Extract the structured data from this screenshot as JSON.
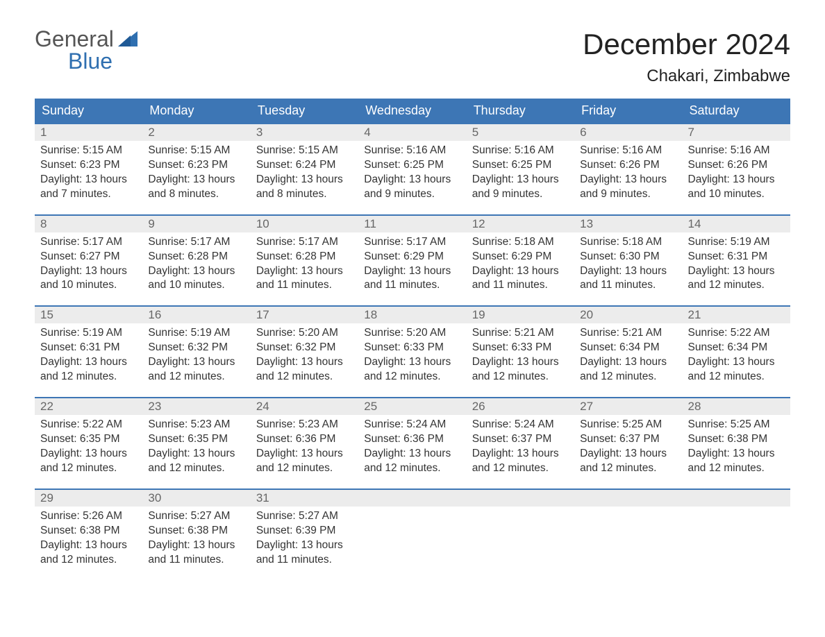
{
  "logo": {
    "text_top": "General",
    "text_bottom": "Blue",
    "top_color": "#555555",
    "bottom_color": "#2f6fb0",
    "flag_color": "#2f6fb0",
    "fontsize": 32
  },
  "title": {
    "month": "December 2024",
    "month_fontsize": 42,
    "location": "Chakari, Zimbabwe",
    "location_fontsize": 24,
    "color": "#222222"
  },
  "calendar": {
    "header_bg": "#3d76b5",
    "header_text_color": "#ffffff",
    "row_accent_color": "#3d76b5",
    "daynum_bg": "#ececec",
    "daynum_color": "#666666",
    "body_text_color": "#333333",
    "background": "#ffffff",
    "cell_fontsize": 15.5,
    "daynames": [
      "Sunday",
      "Monday",
      "Tuesday",
      "Wednesday",
      "Thursday",
      "Friday",
      "Saturday"
    ],
    "weeks": [
      [
        {
          "n": "1",
          "sunrise": "Sunrise: 5:15 AM",
          "sunset": "Sunset: 6:23 PM",
          "daylight": "Daylight: 13 hours and 7 minutes."
        },
        {
          "n": "2",
          "sunrise": "Sunrise: 5:15 AM",
          "sunset": "Sunset: 6:23 PM",
          "daylight": "Daylight: 13 hours and 8 minutes."
        },
        {
          "n": "3",
          "sunrise": "Sunrise: 5:15 AM",
          "sunset": "Sunset: 6:24 PM",
          "daylight": "Daylight: 13 hours and 8 minutes."
        },
        {
          "n": "4",
          "sunrise": "Sunrise: 5:16 AM",
          "sunset": "Sunset: 6:25 PM",
          "daylight": "Daylight: 13 hours and 9 minutes."
        },
        {
          "n": "5",
          "sunrise": "Sunrise: 5:16 AM",
          "sunset": "Sunset: 6:25 PM",
          "daylight": "Daylight: 13 hours and 9 minutes."
        },
        {
          "n": "6",
          "sunrise": "Sunrise: 5:16 AM",
          "sunset": "Sunset: 6:26 PM",
          "daylight": "Daylight: 13 hours and 9 minutes."
        },
        {
          "n": "7",
          "sunrise": "Sunrise: 5:16 AM",
          "sunset": "Sunset: 6:26 PM",
          "daylight": "Daylight: 13 hours and 10 minutes."
        }
      ],
      [
        {
          "n": "8",
          "sunrise": "Sunrise: 5:17 AM",
          "sunset": "Sunset: 6:27 PM",
          "daylight": "Daylight: 13 hours and 10 minutes."
        },
        {
          "n": "9",
          "sunrise": "Sunrise: 5:17 AM",
          "sunset": "Sunset: 6:28 PM",
          "daylight": "Daylight: 13 hours and 10 minutes."
        },
        {
          "n": "10",
          "sunrise": "Sunrise: 5:17 AM",
          "sunset": "Sunset: 6:28 PM",
          "daylight": "Daylight: 13 hours and 11 minutes."
        },
        {
          "n": "11",
          "sunrise": "Sunrise: 5:17 AM",
          "sunset": "Sunset: 6:29 PM",
          "daylight": "Daylight: 13 hours and 11 minutes."
        },
        {
          "n": "12",
          "sunrise": "Sunrise: 5:18 AM",
          "sunset": "Sunset: 6:29 PM",
          "daylight": "Daylight: 13 hours and 11 minutes."
        },
        {
          "n": "13",
          "sunrise": "Sunrise: 5:18 AM",
          "sunset": "Sunset: 6:30 PM",
          "daylight": "Daylight: 13 hours and 11 minutes."
        },
        {
          "n": "14",
          "sunrise": "Sunrise: 5:19 AM",
          "sunset": "Sunset: 6:31 PM",
          "daylight": "Daylight: 13 hours and 12 minutes."
        }
      ],
      [
        {
          "n": "15",
          "sunrise": "Sunrise: 5:19 AM",
          "sunset": "Sunset: 6:31 PM",
          "daylight": "Daylight: 13 hours and 12 minutes."
        },
        {
          "n": "16",
          "sunrise": "Sunrise: 5:19 AM",
          "sunset": "Sunset: 6:32 PM",
          "daylight": "Daylight: 13 hours and 12 minutes."
        },
        {
          "n": "17",
          "sunrise": "Sunrise: 5:20 AM",
          "sunset": "Sunset: 6:32 PM",
          "daylight": "Daylight: 13 hours and 12 minutes."
        },
        {
          "n": "18",
          "sunrise": "Sunrise: 5:20 AM",
          "sunset": "Sunset: 6:33 PM",
          "daylight": "Daylight: 13 hours and 12 minutes."
        },
        {
          "n": "19",
          "sunrise": "Sunrise: 5:21 AM",
          "sunset": "Sunset: 6:33 PM",
          "daylight": "Daylight: 13 hours and 12 minutes."
        },
        {
          "n": "20",
          "sunrise": "Sunrise: 5:21 AM",
          "sunset": "Sunset: 6:34 PM",
          "daylight": "Daylight: 13 hours and 12 minutes."
        },
        {
          "n": "21",
          "sunrise": "Sunrise: 5:22 AM",
          "sunset": "Sunset: 6:34 PM",
          "daylight": "Daylight: 13 hours and 12 minutes."
        }
      ],
      [
        {
          "n": "22",
          "sunrise": "Sunrise: 5:22 AM",
          "sunset": "Sunset: 6:35 PM",
          "daylight": "Daylight: 13 hours and 12 minutes."
        },
        {
          "n": "23",
          "sunrise": "Sunrise: 5:23 AM",
          "sunset": "Sunset: 6:35 PM",
          "daylight": "Daylight: 13 hours and 12 minutes."
        },
        {
          "n": "24",
          "sunrise": "Sunrise: 5:23 AM",
          "sunset": "Sunset: 6:36 PM",
          "daylight": "Daylight: 13 hours and 12 minutes."
        },
        {
          "n": "25",
          "sunrise": "Sunrise: 5:24 AM",
          "sunset": "Sunset: 6:36 PM",
          "daylight": "Daylight: 13 hours and 12 minutes."
        },
        {
          "n": "26",
          "sunrise": "Sunrise: 5:24 AM",
          "sunset": "Sunset: 6:37 PM",
          "daylight": "Daylight: 13 hours and 12 minutes."
        },
        {
          "n": "27",
          "sunrise": "Sunrise: 5:25 AM",
          "sunset": "Sunset: 6:37 PM",
          "daylight": "Daylight: 13 hours and 12 minutes."
        },
        {
          "n": "28",
          "sunrise": "Sunrise: 5:25 AM",
          "sunset": "Sunset: 6:38 PM",
          "daylight": "Daylight: 13 hours and 12 minutes."
        }
      ],
      [
        {
          "n": "29",
          "sunrise": "Sunrise: 5:26 AM",
          "sunset": "Sunset: 6:38 PM",
          "daylight": "Daylight: 13 hours and 12 minutes."
        },
        {
          "n": "30",
          "sunrise": "Sunrise: 5:27 AM",
          "sunset": "Sunset: 6:38 PM",
          "daylight": "Daylight: 13 hours and 11 minutes."
        },
        {
          "n": "31",
          "sunrise": "Sunrise: 5:27 AM",
          "sunset": "Sunset: 6:39 PM",
          "daylight": "Daylight: 13 hours and 11 minutes."
        },
        null,
        null,
        null,
        null
      ]
    ]
  }
}
